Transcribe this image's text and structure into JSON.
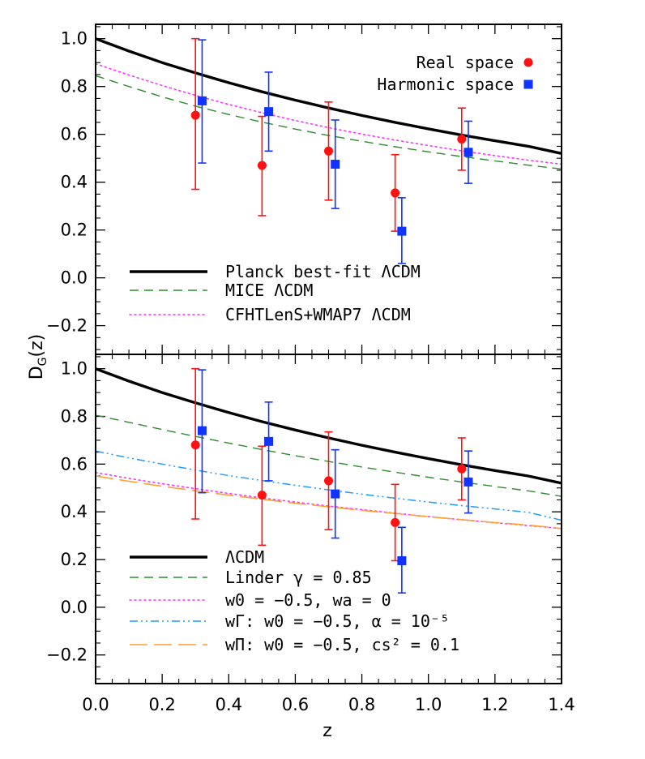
{
  "xlabel": "z",
  "ylabel_main": "D",
  "ylabel_sub": "G",
  "ylabel_arg": "(z)",
  "chart_data": [
    {
      "type": "line",
      "panel": "top",
      "xlim": [
        0.0,
        1.4
      ],
      "ylim": [
        -0.32,
        1.06
      ],
      "xticks": [
        0.0,
        0.2,
        0.4,
        0.6,
        0.8,
        1.0,
        1.2,
        1.4
      ],
      "yticks": [
        -0.2,
        0.0,
        0.2,
        0.4,
        0.6,
        0.8,
        1.0
      ],
      "ytick_labels": [
        "−0.2",
        "0.0",
        "0.2",
        "0.4",
        "0.6",
        "0.8",
        "1.0"
      ],
      "series": [
        {
          "name": "Planck best-fit ΛCDM",
          "style": "solid",
          "color": "#000000",
          "x": [
            0.0,
            0.1,
            0.2,
            0.3,
            0.4,
            0.5,
            0.6,
            0.7,
            0.8,
            0.9,
            1.0,
            1.1,
            1.2,
            1.3,
            1.4
          ],
          "y": [
            1.0,
            0.948,
            0.9,
            0.857,
            0.816,
            0.778,
            0.743,
            0.71,
            0.679,
            0.65,
            0.623,
            0.597,
            0.573,
            0.55,
            0.52
          ]
        },
        {
          "name": "MICE ΛCDM",
          "style": "dashed",
          "color": "#2e8b2e",
          "x": [
            0.0,
            0.1,
            0.2,
            0.3,
            0.4,
            0.5,
            0.6,
            0.7,
            0.8,
            0.9,
            1.0,
            1.1,
            1.2,
            1.3,
            1.4
          ],
          "y": [
            0.845,
            0.8,
            0.757,
            0.718,
            0.683,
            0.651,
            0.622,
            0.595,
            0.571,
            0.548,
            0.527,
            0.507,
            0.489,
            0.471,
            0.455
          ]
        },
        {
          "name": "CFHTLenS+WMAP7 ΛCDM",
          "style": "dotted",
          "color": "#ff33ff",
          "x": [
            0.0,
            0.1,
            0.2,
            0.3,
            0.4,
            0.5,
            0.6,
            0.7,
            0.8,
            0.9,
            1.0,
            1.1,
            1.2,
            1.3,
            1.4
          ],
          "y": [
            0.895,
            0.848,
            0.804,
            0.763,
            0.725,
            0.69,
            0.658,
            0.628,
            0.601,
            0.576,
            0.553,
            0.531,
            0.511,
            0.492,
            0.475
          ]
        }
      ],
      "points": [
        {
          "name": "Real space",
          "marker": "circle",
          "color": "#ff1111",
          "x": [
            0.3,
            0.5,
            0.7,
            0.9,
            1.1
          ],
          "y": [
            0.68,
            0.47,
            0.53,
            0.355,
            0.58
          ],
          "ylow": [
            0.37,
            0.26,
            0.325,
            0.195,
            0.45
          ],
          "yhigh": [
            1.0,
            0.675,
            0.735,
            0.515,
            0.71
          ]
        },
        {
          "name": "Harmonic space",
          "marker": "square",
          "color": "#1133ff",
          "x": [
            0.32,
            0.52,
            0.72,
            0.92,
            1.12
          ],
          "y": [
            0.74,
            0.695,
            0.475,
            0.195,
            0.525
          ],
          "ylow": [
            0.48,
            0.53,
            0.29,
            0.06,
            0.395
          ],
          "yhigh": [
            0.995,
            0.86,
            0.66,
            0.335,
            0.655
          ]
        }
      ],
      "legend_points": [
        "Real space",
        "Harmonic space"
      ],
      "legend_points_position": "top-right",
      "legend_lines_position": "bottom-left"
    },
    {
      "type": "line",
      "panel": "bottom",
      "xlim": [
        0.0,
        1.4
      ],
      "ylim": [
        -0.32,
        1.06
      ],
      "xticks": [
        0.0,
        0.2,
        0.4,
        0.6,
        0.8,
        1.0,
        1.2,
        1.4
      ],
      "xtick_labels": [
        "0.0",
        "0.2",
        "0.4",
        "0.6",
        "0.8",
        "1.0",
        "1.2",
        "1.4"
      ],
      "yticks": [
        -0.2,
        0.0,
        0.2,
        0.4,
        0.6,
        0.8,
        1.0
      ],
      "ytick_labels": [
        "−0.2",
        "0.0",
        "0.2",
        "0.4",
        "0.6",
        "0.8",
        "1.0"
      ],
      "series": [
        {
          "name": "ΛCDM",
          "style": "solid",
          "color": "#000000",
          "x": [
            0.0,
            0.1,
            0.2,
            0.3,
            0.4,
            0.5,
            0.6,
            0.7,
            0.8,
            0.9,
            1.0,
            1.1,
            1.2,
            1.3,
            1.4
          ],
          "y": [
            1.0,
            0.948,
            0.9,
            0.857,
            0.816,
            0.778,
            0.743,
            0.71,
            0.679,
            0.65,
            0.623,
            0.597,
            0.573,
            0.55,
            0.52
          ]
        },
        {
          "name": "Linder γ = 0.85",
          "style": "dashed",
          "color": "#2e8b2e",
          "x": [
            0.0,
            0.1,
            0.2,
            0.3,
            0.4,
            0.5,
            0.6,
            0.7,
            0.8,
            0.9,
            1.0,
            1.1,
            1.2,
            1.3,
            1.4
          ],
          "y": [
            0.805,
            0.775,
            0.745,
            0.716,
            0.688,
            0.661,
            0.635,
            0.611,
            0.588,
            0.566,
            0.545,
            0.525,
            0.506,
            0.488,
            0.465
          ]
        },
        {
          "name": "w0 = −0.5, wa = 0",
          "style": "dotted",
          "color": "#ff33ff",
          "x": [
            0.0,
            0.1,
            0.2,
            0.3,
            0.4,
            0.5,
            0.6,
            0.7,
            0.8,
            0.9,
            1.0,
            1.1,
            1.2,
            1.3,
            1.4
          ],
          "y": [
            0.565,
            0.54,
            0.518,
            0.497,
            0.477,
            0.458,
            0.441,
            0.424,
            0.409,
            0.394,
            0.38,
            0.367,
            0.354,
            0.342,
            0.33
          ]
        },
        {
          "name": "wΓ: w0 = −0.5, α = 10⁻⁵",
          "style": "dashdotdot",
          "color": "#1e9bff",
          "x": [
            0.0,
            0.1,
            0.2,
            0.3,
            0.4,
            0.5,
            0.6,
            0.7,
            0.8,
            0.9,
            1.0,
            1.1,
            1.2,
            1.3,
            1.4
          ],
          "y": [
            0.655,
            0.626,
            0.6,
            0.575,
            0.552,
            0.531,
            0.511,
            0.492,
            0.474,
            0.457,
            0.441,
            0.426,
            0.412,
            0.398,
            0.365
          ]
        },
        {
          "name": "wΠ: w0 = −0.5, cₛ² = 0.1",
          "style": "longdash",
          "color": "#ffa033",
          "x": [
            0.0,
            0.1,
            0.2,
            0.3,
            0.4,
            0.5,
            0.6,
            0.7,
            0.8,
            0.9,
            1.0,
            1.1,
            1.2,
            1.3,
            1.4
          ],
          "y": [
            0.55,
            0.528,
            0.507,
            0.488,
            0.47,
            0.453,
            0.436,
            0.421,
            0.406,
            0.393,
            0.38,
            0.367,
            0.355,
            0.344,
            0.33
          ]
        }
      ],
      "points": [
        {
          "name": "Real space",
          "marker": "circle",
          "color": "#ff1111",
          "x": [
            0.3,
            0.5,
            0.7,
            0.9,
            1.1
          ],
          "y": [
            0.68,
            0.47,
            0.53,
            0.355,
            0.58
          ],
          "ylow": [
            0.37,
            0.26,
            0.325,
            0.195,
            0.45
          ],
          "yhigh": [
            1.0,
            0.675,
            0.735,
            0.515,
            0.71
          ]
        },
        {
          "name": "Harmonic space",
          "marker": "square",
          "color": "#1133ff",
          "x": [
            0.32,
            0.52,
            0.72,
            0.92,
            1.12
          ],
          "y": [
            0.74,
            0.695,
            0.475,
            0.195,
            0.525
          ],
          "ylow": [
            0.48,
            0.53,
            0.29,
            0.06,
            0.395
          ],
          "yhigh": [
            0.995,
            0.86,
            0.66,
            0.335,
            0.655
          ]
        }
      ],
      "legend_lines_position": "bottom-left"
    }
  ],
  "legend_top": {
    "points": [
      "Real space",
      "Harmonic space"
    ],
    "lines": [
      "Planck best-fit ΛCDM",
      "MICE ΛCDM",
      "CFHTLenS+WMAP7 ΛCDM"
    ]
  },
  "legend_bottom": {
    "lines": [
      "ΛCDM",
      "Linder γ = 0.85",
      "w0 = −0.5, wa = 0",
      "wΓ: w0 = −0.5, α = 10⁻⁵",
      "wΠ: w0 = −0.5, cs² = 0.1"
    ]
  }
}
